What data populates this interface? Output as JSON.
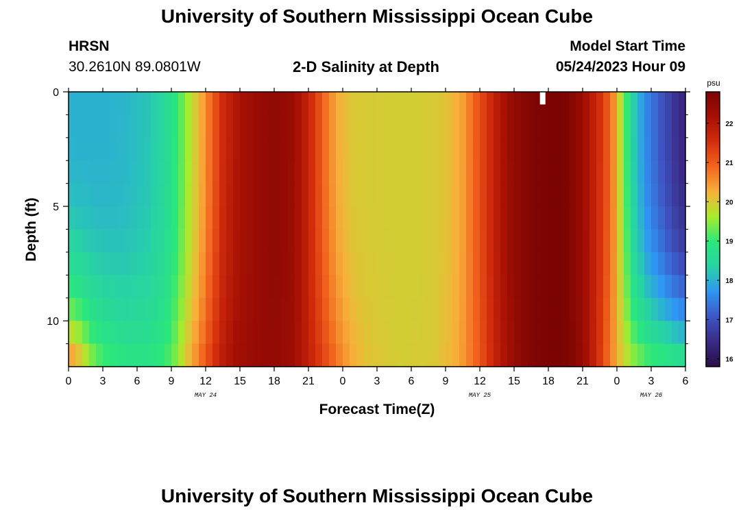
{
  "header": {
    "title": "University of Southern Mississippi Ocean Cube",
    "station": "HRSN",
    "coords": "30.2610N  89.0801W",
    "subtitle": "2-D Salinity at Depth",
    "model_label": "Model Start Time",
    "model_time": "05/24/2023 Hour 09"
  },
  "footer": {
    "title": "University of Southern Mississippi Ocean Cube"
  },
  "chart_data": {
    "type": "heatmap",
    "title": "2-D Salinity at Depth",
    "xlabel": "Forecast Time(Z)",
    "ylabel": "Depth (ft)",
    "x_ticks": [
      "0",
      "3",
      "6",
      "9",
      "12",
      "15",
      "18",
      "21",
      "0",
      "3",
      "6",
      "9",
      "12",
      "15",
      "18",
      "21",
      "0",
      "3",
      "6"
    ],
    "x_tick_hours": [
      0,
      3,
      6,
      9,
      12,
      15,
      18,
      21,
      24,
      27,
      30,
      33,
      36,
      39,
      42,
      45,
      48,
      51,
      54
    ],
    "day_labels": [
      {
        "text": "MAY 24",
        "hour": 12
      },
      {
        "text": "MAY 25",
        "hour": 36
      },
      {
        "text": "MAY 26",
        "hour": 51
      }
    ],
    "xlim": [
      0,
      54
    ],
    "y_ticks": [
      "0",
      "5",
      "10"
    ],
    "y_tick_values": [
      0,
      5,
      10
    ],
    "y_minor_ticks": [
      1,
      2,
      3,
      4,
      6,
      7,
      8,
      9,
      11
    ],
    "ylim": [
      0,
      12
    ],
    "colorbar": {
      "unit": "psu",
      "ticks": [
        "16",
        "17",
        "18",
        "19",
        "20",
        "21",
        "22"
      ],
      "tick_values": [
        16,
        17,
        18,
        19,
        20,
        21,
        22
      ],
      "range": [
        15.8,
        22.8
      ],
      "colors": [
        "#2a0e44",
        "#3a2a86",
        "#3d56c4",
        "#2f96f4",
        "#27d3a4",
        "#2be77a",
        "#a8ec2c",
        "#f7b13a",
        "#f2651e",
        "#d32d0c",
        "#a61004",
        "#7a0403"
      ]
    },
    "surface_salinity_by_hour": [
      [
        0,
        18.0
      ],
      [
        3,
        18.0
      ],
      [
        5,
        18.05
      ],
      [
        7,
        18.2
      ],
      [
        8.5,
        18.5
      ],
      [
        9.5,
        19.0
      ],
      [
        10.5,
        19.6
      ],
      [
        11.5,
        20.2
      ],
      [
        12.5,
        20.9
      ],
      [
        13.5,
        21.6
      ],
      [
        14.5,
        22.0
      ],
      [
        16,
        22.3
      ],
      [
        18,
        22.5
      ],
      [
        19.5,
        22.35
      ],
      [
        20.5,
        22.0
      ],
      [
        21.5,
        21.4
      ],
      [
        22.5,
        20.8
      ],
      [
        23.5,
        20.3
      ],
      [
        25,
        20.0
      ],
      [
        28,
        19.95
      ],
      [
        31,
        19.95
      ],
      [
        33,
        20.05
      ],
      [
        34.5,
        20.4
      ],
      [
        35.5,
        20.9
      ],
      [
        36.5,
        21.4
      ],
      [
        37.5,
        21.9
      ],
      [
        38.5,
        22.3
      ],
      [
        39.5,
        22.55
      ],
      [
        41,
        22.75
      ],
      [
        43,
        22.8
      ],
      [
        44,
        22.65
      ],
      [
        45,
        22.3
      ],
      [
        46,
        21.8
      ],
      [
        47,
        21.2
      ],
      [
        48,
        20.3
      ],
      [
        48.5,
        19.5
      ],
      [
        49.5,
        18.3
      ],
      [
        50.5,
        17.6
      ],
      [
        52,
        17.0
      ],
      [
        53,
        16.6
      ],
      [
        54,
        16.3
      ]
    ],
    "bottom_salinity_by_hour": [
      [
        0,
        20.8
      ],
      [
        1,
        20.3
      ],
      [
        2,
        19.6
      ],
      [
        3,
        19.2
      ],
      [
        5,
        18.9
      ],
      [
        7,
        18.9
      ],
      [
        8.5,
        19.1
      ],
      [
        9.5,
        19.5
      ],
      [
        10.5,
        20.2
      ],
      [
        11.5,
        20.8
      ],
      [
        12.5,
        21.4
      ],
      [
        13.5,
        21.9
      ],
      [
        14.5,
        22.2
      ],
      [
        16,
        22.35
      ],
      [
        18,
        22.45
      ],
      [
        19.5,
        22.3
      ],
      [
        20.5,
        22.0
      ],
      [
        21.5,
        21.6
      ],
      [
        22.5,
        21.2
      ],
      [
        23.5,
        20.8
      ],
      [
        24.5,
        20.4
      ],
      [
        26,
        20.1
      ],
      [
        29,
        19.95
      ],
      [
        32,
        20.0
      ],
      [
        34,
        20.3
      ],
      [
        35.5,
        20.8
      ],
      [
        36.5,
        21.3
      ],
      [
        37.5,
        21.8
      ],
      [
        38.5,
        22.2
      ],
      [
        39.5,
        22.5
      ],
      [
        41,
        22.75
      ],
      [
        43,
        22.8
      ],
      [
        44.5,
        22.6
      ],
      [
        45.5,
        22.1
      ],
      [
        46.5,
        21.4
      ],
      [
        47.5,
        20.6
      ],
      [
        48.5,
        20.0
      ],
      [
        49.5,
        19.6
      ],
      [
        51,
        19.2
      ],
      [
        53,
        19.0
      ],
      [
        54,
        18.9
      ]
    ],
    "depth_blend_exponent": 3.2,
    "missing_cell": {
      "hour": 41.5,
      "depth_from": 0,
      "depth_to": 0.55
    }
  }
}
